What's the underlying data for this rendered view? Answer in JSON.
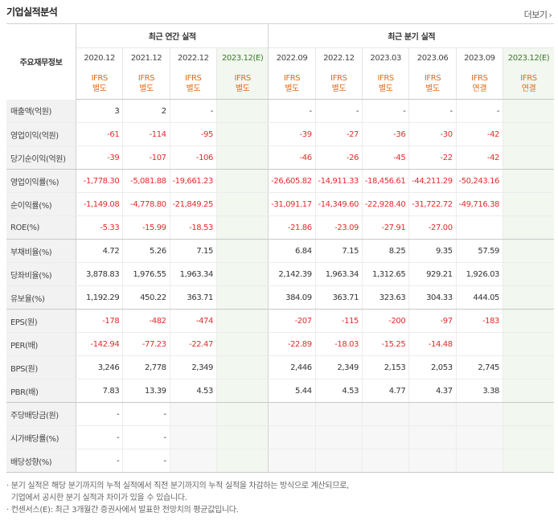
{
  "header": {
    "title": "기업실적분석",
    "more_label": "더보기"
  },
  "table": {
    "label_header": "주요재무정보",
    "group_annual": "최근 연간 실적",
    "group_quarter": "최근 분기 실적",
    "annual_periods": [
      "2020.12",
      "2021.12",
      "2022.12",
      "2023.12(E)"
    ],
    "quarter_periods": [
      "2022.09",
      "2022.12",
      "2023.03",
      "2023.06",
      "2023.09",
      "2023.12(E)"
    ],
    "annual_basis": [
      [
        "IFRS",
        "별도"
      ],
      [
        "IFRS",
        "별도"
      ],
      [
        "IFRS",
        "별도"
      ],
      [
        "IFRS",
        "별도"
      ]
    ],
    "quarter_basis": [
      [
        "IFRS",
        "별도"
      ],
      [
        "IFRS",
        "별도"
      ],
      [
        "IFRS",
        "별도"
      ],
      [
        "IFRS",
        "별도"
      ],
      [
        "IFRS",
        "연결"
      ],
      [
        "IFRS",
        "연결"
      ]
    ],
    "rows": [
      {
        "label": "매출액(억원)",
        "annual": [
          "3",
          "2",
          "-",
          ""
        ],
        "quarter": [
          "-",
          "-",
          "-",
          "-",
          "-",
          ""
        ]
      },
      {
        "label": "영업이익(억원)",
        "annual": [
          "-61",
          "-114",
          "-95",
          ""
        ],
        "quarter": [
          "-39",
          "-27",
          "-36",
          "-30",
          "-42",
          ""
        ]
      },
      {
        "label": "당기순이익(억원)",
        "annual": [
          "-39",
          "-107",
          "-106",
          ""
        ],
        "quarter": [
          "-46",
          "-26",
          "-45",
          "-22",
          "-42",
          ""
        ]
      },
      {
        "label": "영업이익률(%)",
        "annual": [
          "-1,778.30",
          "-5,081.88",
          "-19,661.23",
          ""
        ],
        "quarter": [
          "-26,605.82",
          "-14,911.33",
          "-18,456.61",
          "-44,211.29",
          "-50,243.16",
          ""
        ]
      },
      {
        "label": "순이익률(%)",
        "annual": [
          "-1,149.08",
          "-4,778.80",
          "-21,849.25",
          ""
        ],
        "quarter": [
          "-31,091.17",
          "-14,349.60",
          "-22,928.40",
          "-31,722.72",
          "-49,716.38",
          ""
        ]
      },
      {
        "label": "ROE(%)",
        "annual": [
          "-5.33",
          "-15.99",
          "-18.53",
          ""
        ],
        "quarter": [
          "-21.86",
          "-23.09",
          "-27.91",
          "-27.00",
          "",
          ""
        ]
      },
      {
        "label": "부채비율(%)",
        "annual": [
          "4.72",
          "5.26",
          "7.15",
          ""
        ],
        "quarter": [
          "6.84",
          "7.15",
          "8.25",
          "9.35",
          "57.59",
          ""
        ]
      },
      {
        "label": "당좌비율(%)",
        "annual": [
          "3,878.83",
          "1,976.55",
          "1,963.34",
          ""
        ],
        "quarter": [
          "2,142.39",
          "1,963.34",
          "1,312.65",
          "929.21",
          "1,926.03",
          ""
        ]
      },
      {
        "label": "유보율(%)",
        "annual": [
          "1,192.29",
          "450.22",
          "363.71",
          ""
        ],
        "quarter": [
          "384.09",
          "363.71",
          "323.63",
          "304.33",
          "444.05",
          ""
        ]
      },
      {
        "label": "EPS(원)",
        "annual": [
          "-178",
          "-482",
          "-474",
          ""
        ],
        "quarter": [
          "-207",
          "-115",
          "-200",
          "-97",
          "-183",
          ""
        ]
      },
      {
        "label": "PER(배)",
        "annual": [
          "-142.94",
          "-77.23",
          "-22.47",
          ""
        ],
        "quarter": [
          "-22.89",
          "-18.03",
          "-15.25",
          "-14.48",
          "",
          ""
        ]
      },
      {
        "label": "BPS(원)",
        "annual": [
          "3,246",
          "2,778",
          "2,349",
          ""
        ],
        "quarter": [
          "2,446",
          "2,349",
          "2,153",
          "2,053",
          "2,745",
          ""
        ]
      },
      {
        "label": "PBR(배)",
        "annual": [
          "7.83",
          "13.39",
          "4.53",
          ""
        ],
        "quarter": [
          "5.44",
          "4.53",
          "4.77",
          "4.37",
          "3.38",
          ""
        ]
      },
      {
        "label": "주당배당금(원)",
        "annual": [
          "-",
          "-",
          "",
          ""
        ],
        "quarter": [
          "",
          "",
          "",
          "",
          "",
          ""
        ]
      },
      {
        "label": "시가배당률(%)",
        "annual": [
          "-",
          "-",
          "",
          ""
        ],
        "quarter": [
          "",
          "",
          "",
          "",
          "",
          ""
        ]
      },
      {
        "label": "배당성향(%)",
        "annual": [
          "-",
          "-",
          "",
          ""
        ],
        "quarter": [
          "",
          "",
          "",
          "",
          "",
          ""
        ]
      }
    ]
  },
  "notes": [
    "· 분기 실적은 해당 분기까지의 누적 실적에서 직전 분기까지의 누적 실적을 차감하는 방식으로 계산되므로,",
    "  기업에서 공시한 분기 실적과 차이가 있을 수 있습니다.",
    "· 컨센서스(E): 최근 3개월간 증권사에서 발표한 전망치의 평균값입니다."
  ],
  "colors": {
    "negative": "#e32b2b",
    "basis": "#e46a18",
    "estimate_bg": "#f2f7ef"
  }
}
